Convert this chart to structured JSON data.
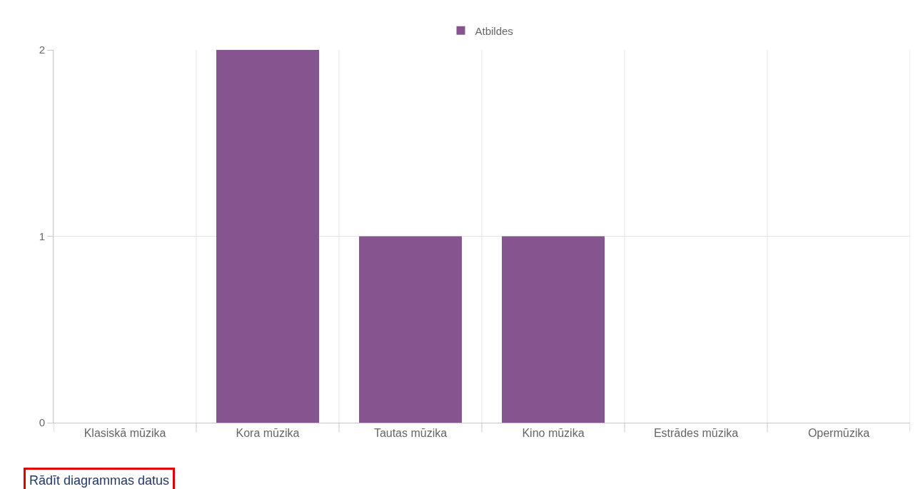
{
  "chart_data": {
    "type": "bar",
    "categories": [
      "Klasiskā mūzika",
      "Kora mūzika",
      "Tautas mūzika",
      "Kino mūzika",
      "Estrādes mūzika",
      "Opermūzika"
    ],
    "series": [
      {
        "name": "Atbildes",
        "color": "#86548f",
        "values": [
          0,
          2,
          1,
          1,
          0,
          0
        ]
      }
    ],
    "ylim": [
      0,
      2
    ],
    "yticks": [
      0,
      1,
      2
    ],
    "grid": true,
    "legend": "top",
    "annotations": [
      "Rādīt diagrammas datus"
    ]
  }
}
